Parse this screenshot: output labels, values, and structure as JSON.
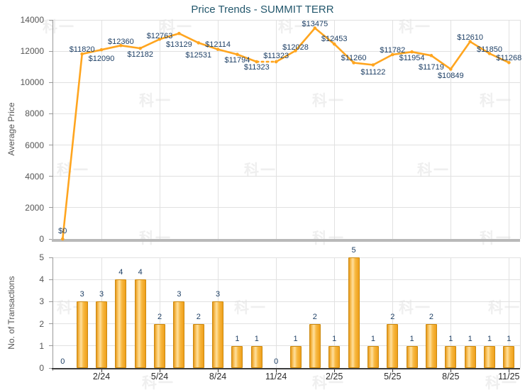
{
  "title": "Price Trends - SUMMIT TERR",
  "watermark": {
    "text": "科一"
  },
  "colors": {
    "line": "#ffa51f",
    "value_label": "#1f4066",
    "bar_border": "#cc8a10",
    "title": "#24586d",
    "axis_text": "#555555",
    "grid": "#e1e1e1"
  },
  "chart_data": [
    {
      "type": "line",
      "title": "Price Trends - SUMMIT TERR",
      "xlabel": "",
      "ylabel": "Average Price",
      "ylim": [
        0,
        14000
      ],
      "yticks": [
        0,
        2000,
        4000,
        6000,
        8000,
        10000,
        12000,
        14000
      ],
      "x_tick_labels": [
        "2/24",
        "5/24",
        "8/24",
        "11/24",
        "2/25",
        "5/25",
        "8/25",
        "11/25"
      ],
      "x_tick_indices": [
        2,
        5,
        8,
        11,
        14,
        17,
        20,
        23
      ],
      "grid": true,
      "legend": "none",
      "values": [
        0,
        11820,
        12090,
        12360,
        12182,
        12763,
        13129,
        12531,
        12114,
        11794,
        11323,
        11323,
        12028,
        13475,
        12453,
        11260,
        11122,
        11782,
        11954,
        11719,
        10849,
        12610,
        11850,
        11268
      ],
      "point_labels": [
        "$0",
        "$11820",
        "$12090",
        "$12360",
        "$12182",
        "$12763",
        "$13129",
        "$12531",
        "$12114",
        "$11794",
        "$11323",
        "$11323",
        "$12028",
        "$13475",
        "$12453",
        "$11260",
        "$11122",
        "$11782",
        "$11954",
        "$11719",
        "$10849",
        "$12610",
        "$11850",
        "$11268"
      ],
      "label_dy": [
        -17,
        -12,
        7,
        -11,
        3,
        -10,
        10,
        12,
        -13,
        2,
        2,
        -14,
        -11,
        -12,
        -13,
        -12,
        4,
        -12,
        3,
        11,
        3,
        -12,
        -11,
        -12
      ],
      "dotted_segment": [
        10,
        11
      ]
    },
    {
      "type": "bar",
      "xlabel": "",
      "ylabel": "No. of Transactions",
      "ylim": [
        0,
        5
      ],
      "yticks": [
        0,
        1,
        2,
        3,
        4,
        5
      ],
      "x_tick_labels": [
        "2/24",
        "5/24",
        "8/24",
        "11/24",
        "2/25",
        "5/25",
        "8/25",
        "11/25"
      ],
      "x_tick_indices": [
        2,
        5,
        8,
        11,
        14,
        17,
        20,
        23
      ],
      "grid": true,
      "values": [
        0,
        3,
        3,
        4,
        4,
        2,
        3,
        2,
        3,
        1,
        1,
        0,
        1,
        2,
        1,
        5,
        1,
        2,
        1,
        2,
        1,
        1,
        1,
        1
      ]
    }
  ]
}
